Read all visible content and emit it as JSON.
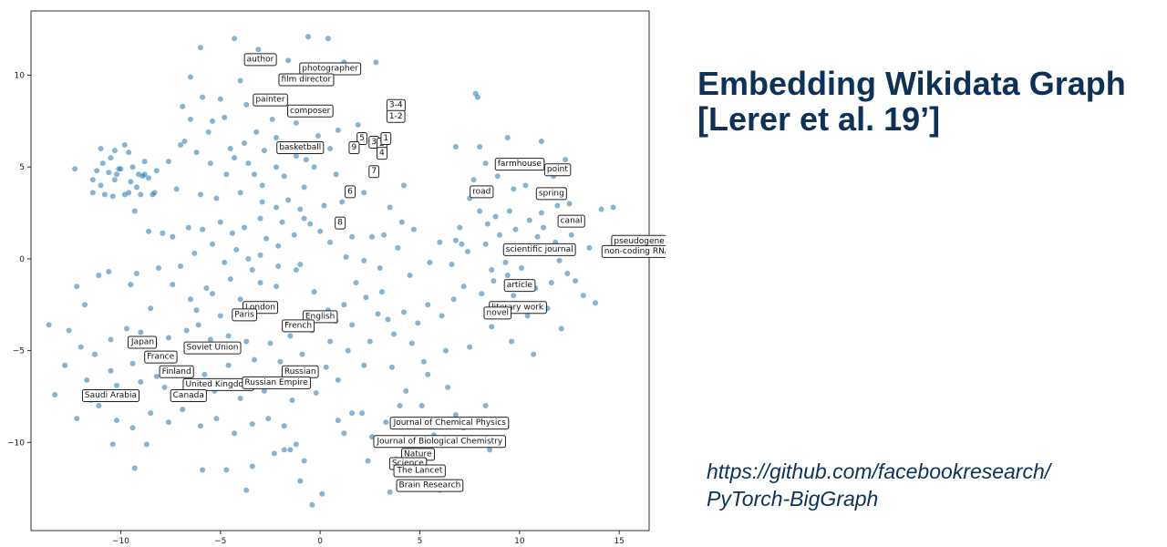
{
  "slide": {
    "title_lines": [
      "Embedding Wikidata Graph",
      "[Lerer et al. 19’]"
    ],
    "link_lines": [
      "https://github.com/facebookresearch/",
      "PyTorch-BigGraph"
    ]
  },
  "chart_data": {
    "type": "scatter",
    "title": "",
    "xlabel": "",
    "ylabel": "",
    "xlim": [
      -14.5,
      16.5
    ],
    "ylim": [
      -14.8,
      13.5
    ],
    "xticks": [
      -10,
      -5,
      0,
      5,
      10,
      15
    ],
    "yticks": [
      -10,
      -5,
      0,
      5,
      10
    ],
    "grid": false,
    "point_color": "#1f77b4",
    "annotations": [
      {
        "text": "author",
        "x": -3.0,
        "y": 10.9
      },
      {
        "text": "photographer",
        "x": 0.5,
        "y": 10.4
      },
      {
        "text": "film director",
        "x": -0.7,
        "y": 9.8
      },
      {
        "text": "painter",
        "x": -2.5,
        "y": 8.7
      },
      {
        "text": "composer",
        "x": -0.5,
        "y": 8.1
      },
      {
        "text": "3-4",
        "x": 3.8,
        "y": 8.4
      },
      {
        "text": "1-2",
        "x": 3.8,
        "y": 7.8
      },
      {
        "text": "5",
        "x": 2.1,
        "y": 6.6
      },
      {
        "text": "3",
        "x": 2.7,
        "y": 6.4
      },
      {
        "text": "2",
        "x": 3.1,
        "y": 6.3
      },
      {
        "text": "1",
        "x": 3.3,
        "y": 6.6
      },
      {
        "text": "9",
        "x": 1.7,
        "y": 6.1
      },
      {
        "text": "4",
        "x": 3.1,
        "y": 5.8
      },
      {
        "text": "basketball",
        "x": -1.0,
        "y": 6.1
      },
      {
        "text": "7",
        "x": 2.7,
        "y": 4.8
      },
      {
        "text": "6",
        "x": 1.5,
        "y": 3.7
      },
      {
        "text": "8",
        "x": 1.0,
        "y": 2.0
      },
      {
        "text": "farmhouse",
        "x": 10.0,
        "y": 5.2
      },
      {
        "text": "point",
        "x": 11.9,
        "y": 4.9
      },
      {
        "text": "road",
        "x": 8.1,
        "y": 3.7
      },
      {
        "text": "spring",
        "x": 11.6,
        "y": 3.6
      },
      {
        "text": "canal",
        "x": 12.6,
        "y": 2.1
      },
      {
        "text": "pseudogene",
        "x": 16.0,
        "y": 1.0
      },
      {
        "text": "non-coding RNA",
        "x": 15.9,
        "y": 0.45
      },
      {
        "text": "scientific journal",
        "x": 11.0,
        "y": 0.55
      },
      {
        "text": "article",
        "x": 10.0,
        "y": -1.4
      },
      {
        "text": "literary work",
        "x": 9.9,
        "y": -2.6
      },
      {
        "text": "novel",
        "x": 8.9,
        "y": -2.9
      },
      {
        "text": "London",
        "x": -3.0,
        "y": -2.6
      },
      {
        "text": "Paris",
        "x": -3.8,
        "y": -3.0
      },
      {
        "text": "English",
        "x": 0.0,
        "y": -3.1
      },
      {
        "text": "French",
        "x": -1.1,
        "y": -3.6
      },
      {
        "text": "Japan",
        "x": -8.9,
        "y": -4.5
      },
      {
        "text": "Soviet Union",
        "x": -5.4,
        "y": -4.8
      },
      {
        "text": "France",
        "x": -8.0,
        "y": -5.3
      },
      {
        "text": "Finland",
        "x": -7.2,
        "y": -6.1
      },
      {
        "text": "Russian",
        "x": -1.0,
        "y": -6.1
      },
      {
        "text": "United Kingdom",
        "x": -5.1,
        "y": -6.8
      },
      {
        "text": "Russian Empire",
        "x": -2.2,
        "y": -6.7
      },
      {
        "text": "Saudi Arabia",
        "x": -10.5,
        "y": -7.4
      },
      {
        "text": "Canada",
        "x": -6.6,
        "y": -7.4
      },
      {
        "text": "Journal of Chemical Physics",
        "x": 6.5,
        "y": -8.9
      },
      {
        "text": "Journal of Biological Chemistry",
        "x": 6.0,
        "y": -9.9
      },
      {
        "text": "Nature",
        "x": 4.9,
        "y": -10.6
      },
      {
        "text": "Science",
        "x": 4.4,
        "y": -11.1
      },
      {
        "text": "The Lancet",
        "x": 5.0,
        "y": -11.5
      },
      {
        "text": "Brain Research",
        "x": 5.5,
        "y": -12.3
      }
    ],
    "points": [
      [
        -10.3,
        5.9
      ],
      [
        -9.8,
        6.2
      ],
      [
        -10.5,
        5.5
      ],
      [
        -10.9,
        5.2
      ],
      [
        -11.2,
        4.8
      ],
      [
        -10.6,
        4.7
      ],
      [
        -10.0,
        4.9
      ],
      [
        -9.4,
        5.0
      ],
      [
        -9.1,
        4.6
      ],
      [
        -8.8,
        4.6
      ],
      [
        -8.6,
        4.4
      ],
      [
        -9.5,
        4.2
      ],
      [
        -10.3,
        4.3
      ],
      [
        -11.0,
        4.0
      ],
      [
        -11.4,
        3.6
      ],
      [
        -10.8,
        3.5
      ],
      [
        -10.4,
        3.4
      ],
      [
        -9.8,
        3.5
      ],
      [
        -9.0,
        3.5
      ],
      [
        -8.4,
        3.5
      ],
      [
        -8.8,
        5.3
      ],
      [
        -9.6,
        5.8
      ],
      [
        -11.0,
        6.0
      ],
      [
        -12.3,
        4.9
      ],
      [
        -10.1,
        4.9
      ],
      [
        -9.6,
        3.6
      ],
      [
        -9.2,
        3.9
      ],
      [
        -8.9,
        4.5
      ],
      [
        -10.2,
        4.6
      ],
      [
        -11.4,
        4.3
      ],
      [
        -6.5,
        9.9
      ],
      [
        -6.0,
        11.5
      ],
      [
        -4.3,
        12.0
      ],
      [
        -3.1,
        11.4
      ],
      [
        -1.6,
        10.8
      ],
      [
        -0.6,
        12.1
      ],
      [
        0.4,
        12.0
      ],
      [
        1.2,
        10.7
      ],
      [
        2.8,
        10.7
      ],
      [
        -4.0,
        9.7
      ],
      [
        -5.0,
        8.7
      ],
      [
        -3.7,
        8.4
      ],
      [
        -4.8,
        7.7
      ],
      [
        -2.4,
        7.6
      ],
      [
        -3.2,
        6.9
      ],
      [
        -3.8,
        6.3
      ],
      [
        -4.5,
        6.0
      ],
      [
        -5.9,
        8.8
      ],
      [
        -6.9,
        8.3
      ],
      [
        -6.5,
        7.6
      ],
      [
        -5.4,
        7.5
      ],
      [
        -7.0,
        6.2
      ],
      [
        -6.2,
        5.8
      ],
      [
        -5.5,
        5.2
      ],
      [
        -4.7,
        4.6
      ],
      [
        -3.6,
        5.2
      ],
      [
        -2.8,
        5.9
      ],
      [
        -2.2,
        6.6
      ],
      [
        -1.2,
        7.4
      ],
      [
        -0.1,
        6.7
      ],
      [
        0.9,
        7.0
      ],
      [
        1.9,
        7.3
      ],
      [
        0.5,
        6.0
      ],
      [
        -0.7,
        5.4
      ],
      [
        -1.8,
        4.5
      ],
      [
        -2.9,
        4.0
      ],
      [
        -4.0,
        3.6
      ],
      [
        -5.2,
        3.3
      ],
      [
        -6.0,
        3.5
      ],
      [
        -7.2,
        3.8
      ],
      [
        -8.3,
        3.6
      ],
      [
        -9.3,
        2.6
      ],
      [
        -8.6,
        1.5
      ],
      [
        -7.9,
        1.4
      ],
      [
        -7.4,
        1.2
      ],
      [
        -6.6,
        1.7
      ],
      [
        -5.9,
        1.6
      ],
      [
        -5.0,
        2.0
      ],
      [
        -4.4,
        1.4
      ],
      [
        -3.8,
        1.7
      ],
      [
        -3.0,
        2.2
      ],
      [
        -2.2,
        2.8
      ],
      [
        -1.6,
        3.2
      ],
      [
        -0.8,
        3.9
      ],
      [
        0.2,
        2.9
      ],
      [
        0.9,
        1.8
      ],
      [
        1.6,
        1.2
      ],
      [
        -0.5,
        1.9
      ],
      [
        -1.3,
        1.3
      ],
      [
        -2.1,
        0.7
      ],
      [
        -3.0,
        0.2
      ],
      [
        -4.2,
        0.5
      ],
      [
        -5.4,
        0.8
      ],
      [
        -6.3,
        0.3
      ],
      [
        -7.0,
        -0.4
      ],
      [
        -8.1,
        -0.5
      ],
      [
        -9.2,
        -0.8
      ],
      [
        -10.6,
        -0.7
      ],
      [
        -11.8,
        -2.5
      ],
      [
        -12.6,
        -3.9
      ],
      [
        -13.6,
        -3.6
      ],
      [
        -12.0,
        -4.8
      ],
      [
        -11.3,
        -5.2
      ],
      [
        -10.5,
        -4.4
      ],
      [
        -9.7,
        -3.8
      ],
      [
        -9.0,
        -4.0
      ],
      [
        -8.3,
        -4.6
      ],
      [
        -7.6,
        -4.3
      ],
      [
        -6.7,
        -3.9
      ],
      [
        -6.1,
        -3.6
      ],
      [
        -5.5,
        -4.4
      ],
      [
        -4.6,
        -4.2
      ],
      [
        -3.7,
        -4.5
      ],
      [
        -2.5,
        -4.6
      ],
      [
        -1.5,
        -4.2
      ],
      [
        -0.4,
        -3.9
      ],
      [
        0.5,
        -4.5
      ],
      [
        1.4,
        -5.0
      ],
      [
        0.3,
        -5.9
      ],
      [
        -0.9,
        -5.2
      ],
      [
        -2.0,
        -5.6
      ],
      [
        -3.3,
        -5.5
      ],
      [
        -4.6,
        -5.8
      ],
      [
        -5.8,
        -6.3
      ],
      [
        -7.1,
        -6.1
      ],
      [
        -8.2,
        -6.4
      ],
      [
        -9.4,
        -5.7
      ],
      [
        -10.5,
        -6.1
      ],
      [
        -11.7,
        -6.6
      ],
      [
        -12.8,
        -5.8
      ],
      [
        -13.3,
        -7.4
      ],
      [
        -12.2,
        -8.7
      ],
      [
        -11.1,
        -8.0
      ],
      [
        -10.2,
        -8.8
      ],
      [
        -9.4,
        -9.2
      ],
      [
        -8.5,
        -8.4
      ],
      [
        -7.6,
        -8.9
      ],
      [
        -6.9,
        -8.2
      ],
      [
        -6.0,
        -9.1
      ],
      [
        -5.2,
        -8.7
      ],
      [
        -4.3,
        -9.5
      ],
      [
        -3.4,
        -9.0
      ],
      [
        -2.6,
        -8.7
      ],
      [
        -1.8,
        -9.1
      ],
      [
        -1.2,
        -10.1
      ],
      [
        -2.3,
        -10.6
      ],
      [
        -3.4,
        -11.3
      ],
      [
        -3.7,
        -12.6
      ],
      [
        -4.7,
        -11.5
      ],
      [
        -5.9,
        -11.5
      ],
      [
        -8.7,
        -10.1
      ],
      [
        -9.3,
        -11.4
      ],
      [
        -10.4,
        -10.1
      ],
      [
        -1.5,
        -10.4
      ],
      [
        -1.8,
        -10.4
      ],
      [
        -1.0,
        -12.1
      ],
      [
        0.1,
        -12.8
      ],
      [
        -0.4,
        -13.4
      ],
      [
        1.6,
        -8.4
      ],
      [
        0.9,
        -8.8
      ],
      [
        4.3,
        -7.2
      ],
      [
        5.1,
        -8.0
      ],
      [
        6.4,
        -7.0
      ],
      [
        5.7,
        -9.6
      ],
      [
        7.2,
        -9.2
      ],
      [
        8.5,
        -10.4
      ],
      [
        7.7,
        -9.8
      ],
      [
        3.8,
        -10.9
      ],
      [
        2.4,
        -11.0
      ],
      [
        3.5,
        -12.7
      ],
      [
        6.0,
        -12.6
      ],
      [
        4.6,
        -11.7
      ],
      [
        3.3,
        -8.9
      ],
      [
        2.6,
        -9.7
      ],
      [
        2.1,
        -8.4
      ],
      [
        3.7,
        -4.1
      ],
      [
        4.6,
        -4.6
      ],
      [
        3.4,
        -3.3
      ],
      [
        4.2,
        -2.9
      ],
      [
        4.9,
        -3.5
      ],
      [
        5.4,
        -2.5
      ],
      [
        6.1,
        -3.1
      ],
      [
        6.7,
        -2.2
      ],
      [
        7.2,
        -1.5
      ],
      [
        8.1,
        -1.9
      ],
      [
        8.7,
        -1.2
      ],
      [
        9.4,
        -0.9
      ],
      [
        10.1,
        -0.5
      ],
      [
        10.8,
        -1.6
      ],
      [
        11.6,
        -1.3
      ],
      [
        12.4,
        -0.8
      ],
      [
        13.2,
        -2.0
      ],
      [
        13.8,
        -2.4
      ],
      [
        12.1,
        -3.8
      ],
      [
        10.7,
        -5.2
      ],
      [
        9.6,
        -4.5
      ],
      [
        8.6,
        -3.7
      ],
      [
        7.5,
        -4.8
      ],
      [
        6.3,
        -5.0
      ],
      [
        5.2,
        -5.6
      ],
      [
        6.6,
        -0.3
      ],
      [
        7.4,
        0.4
      ],
      [
        8.3,
        0.8
      ],
      [
        9.0,
        1.3
      ],
      [
        9.8,
        1.6
      ],
      [
        10.5,
        2.1
      ],
      [
        11.1,
        2.5
      ],
      [
        11.9,
        2.9
      ],
      [
        12.5,
        3.0
      ],
      [
        13.0,
        2.2
      ],
      [
        12.6,
        1.3
      ],
      [
        11.8,
        0.9
      ],
      [
        11.3,
        0.3
      ],
      [
        10.4,
        0.5
      ],
      [
        9.3,
        -0.2
      ],
      [
        8.8,
        2.3
      ],
      [
        8.0,
        2.6
      ],
      [
        7.5,
        3.3
      ],
      [
        7.7,
        4.3
      ],
      [
        8.3,
        5.2
      ],
      [
        8.9,
        4.5
      ],
      [
        9.7,
        3.8
      ],
      [
        10.3,
        4.0
      ],
      [
        10.9,
        5.2
      ],
      [
        11.7,
        4.5
      ],
      [
        12.4,
        4.7
      ],
      [
        12.3,
        5.4
      ],
      [
        11.1,
        6.4
      ],
      [
        9.4,
        6.6
      ],
      [
        8.0,
        6.1
      ],
      [
        6.8,
        6.1
      ],
      [
        7.8,
        9.0
      ],
      [
        7.9,
        8.8
      ],
      [
        14.1,
        2.7
      ],
      [
        14.7,
        2.8
      ],
      [
        10.9,
        1.2
      ],
      [
        9.5,
        2.6
      ],
      [
        8.4,
        1.9
      ],
      [
        7.0,
        1.7
      ],
      [
        6.0,
        0.9
      ],
      [
        4.2,
        4.0
      ],
      [
        3.5,
        2.8
      ],
      [
        4.1,
        2.0
      ],
      [
        4.7,
        1.6
      ],
      [
        3.9,
        0.6
      ],
      [
        3.2,
        1.3
      ],
      [
        2.2,
        -0.1
      ],
      [
        1.8,
        -1.3
      ],
      [
        2.3,
        -2.1
      ],
      [
        1.2,
        -2.5
      ],
      [
        0.4,
        -2.8
      ],
      [
        -0.3,
        -1.8
      ],
      [
        -1.2,
        -0.6
      ],
      [
        -2.1,
        -0.4
      ],
      [
        -3.0,
        -1.3
      ],
      [
        -4.0,
        -2.2
      ],
      [
        -5.0,
        -3.1
      ],
      [
        -5.7,
        -1.6
      ],
      [
        -6.5,
        -2.2
      ],
      [
        -7.4,
        -1.4
      ],
      [
        -8.5,
        -2.7
      ],
      [
        -9.5,
        -1.4
      ],
      [
        -11.1,
        -0.9
      ],
      [
        -12.2,
        -1.5
      ],
      [
        -4.8,
        -0.2
      ],
      [
        -3.4,
        -0.6
      ],
      [
        -2.2,
        -1.5
      ],
      [
        -1.0,
        -0.3
      ],
      [
        0.5,
        0.9
      ],
      [
        1.3,
        0.1
      ],
      [
        2.6,
        1.2
      ],
      [
        3.0,
        -0.5
      ],
      [
        4.5,
        -0.9
      ],
      [
        5.5,
        -0.2
      ],
      [
        6.8,
        1.0
      ],
      [
        8.6,
        -0.6
      ],
      [
        9.7,
        -2.0
      ],
      [
        10.4,
        -3.1
      ],
      [
        11.4,
        -2.7
      ],
      [
        12.8,
        -1.2
      ],
      [
        -0.8,
        2.2
      ],
      [
        -1.9,
        2.0
      ],
      [
        -2.7,
        1.1
      ],
      [
        -3.6,
        0.0
      ],
      [
        -4.5,
        -1.1
      ],
      [
        -5.4,
        -1.9
      ],
      [
        -6.2,
        -2.8
      ],
      [
        -2.9,
        3.1
      ],
      [
        -1.0,
        2.7
      ],
      [
        0.0,
        1.5
      ],
      [
        1.1,
        3.1
      ],
      [
        2.2,
        3.6
      ],
      [
        0.8,
        4.6
      ],
      [
        -0.3,
        5.0
      ],
      [
        -1.2,
        5.6
      ],
      [
        -2.2,
        5.0
      ],
      [
        -3.3,
        4.6
      ],
      [
        -4.3,
        5.5
      ],
      [
        -5.6,
        6.9
      ],
      [
        -6.8,
        6.4
      ],
      [
        -7.6,
        5.3
      ],
      [
        -8.2,
        4.8
      ],
      [
        3.1,
        -1.8
      ],
      [
        2.9,
        -3.0
      ],
      [
        1.6,
        -3.6
      ],
      [
        0.8,
        -3.4
      ],
      [
        2.5,
        -4.5
      ],
      [
        2.2,
        -5.8
      ],
      [
        0.9,
        -6.6
      ],
      [
        -0.2,
        -7.3
      ],
      [
        -1.4,
        -7.7
      ],
      [
        -2.8,
        -7.2
      ],
      [
        -4.0,
        -7.6
      ],
      [
        -5.3,
        -7.2
      ],
      [
        -6.4,
        -7.4
      ],
      [
        -7.8,
        -7.0
      ],
      [
        -9.0,
        -6.7
      ],
      [
        -10.2,
        -6.9
      ],
      [
        -11.5,
        -7.7
      ],
      [
        5.4,
        -6.3
      ],
      [
        3.6,
        -5.9
      ],
      [
        4.0,
        -8.0
      ],
      [
        6.8,
        -8.5
      ],
      [
        8.3,
        -8.0
      ],
      [
        1.2,
        -9.5
      ],
      [
        -0.8,
        -11.0
      ],
      [
        7.1,
        0.8
      ],
      [
        13.5,
        0.6
      ],
      [
        12.0,
        -0.1
      ],
      [
        11.2,
        1.7
      ]
    ]
  }
}
